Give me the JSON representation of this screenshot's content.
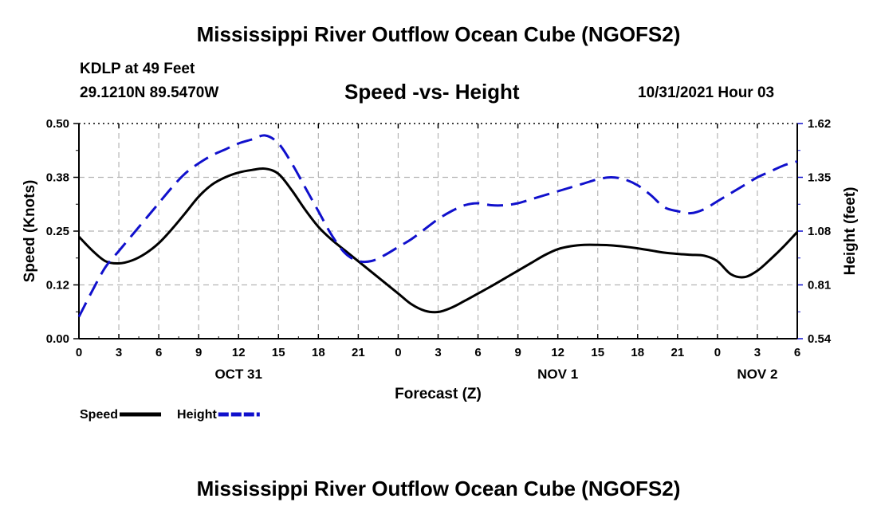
{
  "header": {
    "title": "Mississippi River Outflow Ocean Cube (NGOFS2)",
    "station": "KDLP at 49 Feet",
    "coords": "29.1210N  89.5470W",
    "plot_title": "Speed -vs- Height",
    "timestamp": "10/31/2021 Hour 03"
  },
  "footer": {
    "title": "Mississippi River Outflow Ocean Cube (NGOFS2)"
  },
  "colors": {
    "speed": "#000000",
    "height": "#1010cc",
    "grid": "#b4b4b4"
  },
  "chart_data": {
    "type": "line",
    "title": "Speed -vs- Height",
    "xlabel": "Forecast (Z)",
    "ylabel": "Speed (Knots)",
    "y2label": "Height (feet)",
    "grid": true,
    "legend_position": "bottom-left",
    "x_ticks": [
      "0",
      "3",
      "6",
      "9",
      "12",
      "15",
      "18",
      "21",
      "0",
      "3",
      "6",
      "9",
      "12",
      "15",
      "18",
      "21",
      "0",
      "3",
      "6"
    ],
    "x_range_hours": [
      0,
      54
    ],
    "day_labels": [
      {
        "label": "OCT 31",
        "hour": 12
      },
      {
        "label": "NOV 1",
        "hour": 36
      },
      {
        "label": "NOV 2",
        "hour": 51
      }
    ],
    "y_ticks": [
      "0.00",
      "0.12",
      "0.25",
      "0.38",
      "0.50"
    ],
    "ylim": [
      0,
      0.5
    ],
    "y2_ticks": [
      "0.54",
      "0.81",
      "1.08",
      "1.35",
      "1.62"
    ],
    "y2lim": [
      0.54,
      1.62
    ],
    "series": [
      {
        "name": "Speed",
        "axis": "left",
        "style": "solid",
        "hours": [
          0,
          1,
          2,
          3,
          4,
          5,
          6,
          7,
          8,
          9,
          10,
          11,
          12,
          13,
          14,
          15,
          16,
          17,
          18,
          19,
          20,
          21,
          22,
          23,
          24,
          25,
          26,
          27,
          28,
          29,
          30,
          31,
          32,
          33,
          34,
          35,
          36,
          37,
          38,
          39,
          40,
          41,
          42,
          43,
          44,
          45,
          46,
          47,
          48,
          49,
          50,
          51,
          52,
          53,
          54
        ],
        "values": [
          0.237,
          0.205,
          0.18,
          0.175,
          0.182,
          0.198,
          0.222,
          0.255,
          0.292,
          0.33,
          0.358,
          0.375,
          0.386,
          0.392,
          0.395,
          0.383,
          0.345,
          0.3,
          0.26,
          0.23,
          0.205,
          0.18,
          0.155,
          0.13,
          0.105,
          0.08,
          0.065,
          0.062,
          0.072,
          0.088,
          0.105,
          0.122,
          0.14,
          0.158,
          0.176,
          0.194,
          0.208,
          0.215,
          0.218,
          0.218,
          0.217,
          0.214,
          0.21,
          0.205,
          0.2,
          0.197,
          0.195,
          0.193,
          0.18,
          0.15,
          0.143,
          0.158,
          0.185,
          0.215,
          0.248
        ]
      },
      {
        "name": "Height",
        "axis": "right",
        "style": "dashed",
        "hours": [
          0,
          1,
          2,
          3,
          4,
          5,
          6,
          7,
          8,
          9,
          10,
          11,
          12,
          13,
          14,
          15,
          16,
          17,
          18,
          19,
          20,
          21,
          22,
          23,
          24,
          25,
          26,
          27,
          28,
          29,
          30,
          31,
          32,
          33,
          34,
          35,
          36,
          37,
          38,
          39,
          40,
          41,
          42,
          43,
          44,
          45,
          46,
          47,
          48,
          49,
          50,
          51,
          52,
          53,
          54
        ],
        "values": [
          0.65,
          0.78,
          0.9,
          0.98,
          1.06,
          1.14,
          1.22,
          1.3,
          1.37,
          1.42,
          1.46,
          1.49,
          1.52,
          1.54,
          1.56,
          1.52,
          1.42,
          1.3,
          1.18,
          1.06,
          0.97,
          0.93,
          0.93,
          0.96,
          1.0,
          1.04,
          1.09,
          1.14,
          1.18,
          1.21,
          1.22,
          1.21,
          1.21,
          1.22,
          1.24,
          1.26,
          1.28,
          1.3,
          1.32,
          1.34,
          1.35,
          1.34,
          1.31,
          1.26,
          1.2,
          1.18,
          1.17,
          1.19,
          1.23,
          1.27,
          1.31,
          1.35,
          1.38,
          1.41,
          1.43
        ]
      }
    ]
  },
  "legend": [
    {
      "label": "Speed",
      "style": "solid",
      "color": "#000000"
    },
    {
      "label": "Height",
      "style": "dashed",
      "color": "#1010cc"
    }
  ]
}
